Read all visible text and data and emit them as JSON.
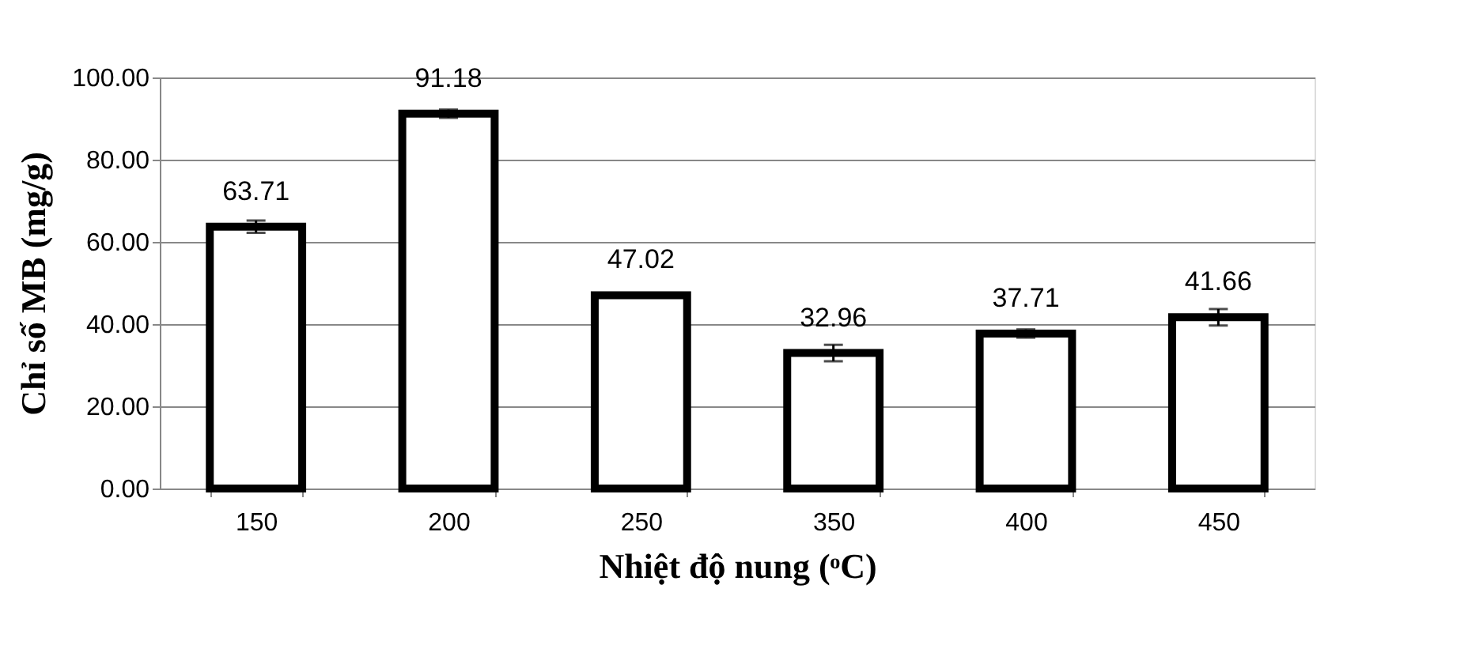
{
  "chart_data": {
    "type": "bar",
    "xlabel": "Nhiệt độ nung (ᵒC)",
    "ylabel": "Chỉ số MB (mg/g)",
    "categories": [
      "150",
      "200",
      "250",
      "350",
      "400",
      "450"
    ],
    "values": [
      63.71,
      91.18,
      47.02,
      32.96,
      37.71,
      41.66
    ],
    "errors": [
      1.5,
      1,
      0.5,
      2,
      1,
      2
    ],
    "color": "#ffffff",
    "ylim": [
      0,
      100
    ],
    "yticks": [
      {
        "value": 0,
        "label": "0.00"
      },
      {
        "value": 20,
        "label": "20.00"
      },
      {
        "value": 40,
        "label": "40.00"
      },
      {
        "value": 60,
        "label": "60.00"
      },
      {
        "value": 80,
        "label": "80.00"
      },
      {
        "value": 100,
        "label": "100.00"
      }
    ],
    "grid": "y",
    "data_labels": true
  }
}
